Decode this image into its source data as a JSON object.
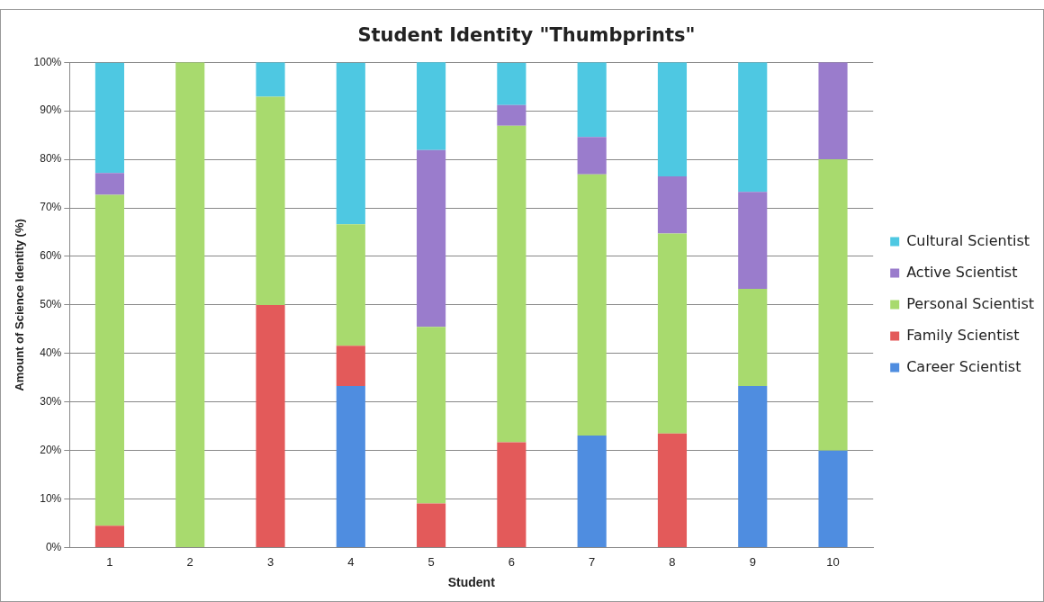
{
  "chart_data": {
    "type": "bar",
    "title": "Student Identity \"Thumbprints\"",
    "xlabel": "Student",
    "ylabel": "Amount of Science Identity (%)",
    "categories": [
      "1",
      "2",
      "3",
      "4",
      "5",
      "6",
      "7",
      "8",
      "9",
      "10"
    ],
    "stacked": true,
    "grid": "y",
    "legend": "right",
    "ylim": [
      0,
      100
    ],
    "yticks": [
      {
        "value": 0,
        "label": "0%"
      },
      {
        "value": 10,
        "label": "10%"
      },
      {
        "value": 20,
        "label": "20%"
      },
      {
        "value": 30,
        "label": "30%"
      },
      {
        "value": 40,
        "label": "40%"
      },
      {
        "value": 50,
        "label": "50%"
      },
      {
        "value": 60,
        "label": "60%"
      },
      {
        "value": 70,
        "label": "70%"
      },
      {
        "value": 80,
        "label": "80%"
      },
      {
        "value": 90,
        "label": "90%"
      },
      {
        "value": 100,
        "label": "100%"
      }
    ],
    "series": [
      {
        "name": "Career Scientist",
        "color": "#4f8de0",
        "values": [
          0,
          0,
          0,
          33.3,
          0,
          0,
          23.1,
          0,
          33.3,
          20
        ]
      },
      {
        "name": "Family Scientist",
        "color": "#e35a5a",
        "values": [
          4.5,
          0,
          50,
          8.3,
          9.1,
          21.7,
          0,
          23.5,
          0,
          0
        ]
      },
      {
        "name": "Personal Scientist",
        "color": "#a8da6e",
        "values": [
          68.2,
          100,
          42.9,
          25,
          36.4,
          65.2,
          53.8,
          41.2,
          20,
          60
        ]
      },
      {
        "name": "Active Scientist",
        "color": "#9a7ccc",
        "values": [
          4.5,
          0,
          0,
          0,
          36.4,
          4.3,
          7.7,
          11.8,
          20,
          20
        ]
      },
      {
        "name": "Cultural Scientist",
        "color": "#4ec8e2",
        "values": [
          22.7,
          0,
          7.1,
          33.3,
          18.2,
          8.7,
          15.4,
          23.5,
          26.7,
          0
        ]
      }
    ]
  }
}
